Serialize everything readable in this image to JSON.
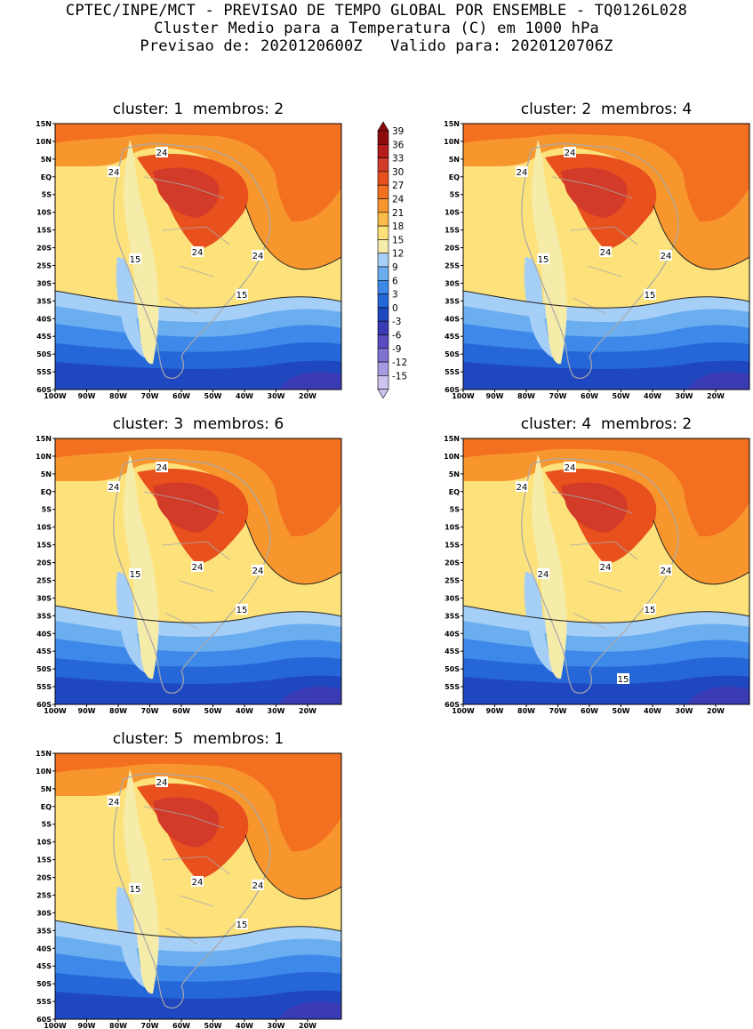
{
  "header": {
    "line1": "CPTEC/INPE/MCT - PREVISAO DE TEMPO GLOBAL POR ENSEMBLE - TQ0126L028",
    "line2": "Cluster Medio para a Temperatura (C) em 1000 hPa",
    "line3": "Previsao de: 2020120600Z   Valido para: 2020120706Z"
  },
  "colorbar": {
    "levels": [
      "39",
      "36",
      "33",
      "30",
      "27",
      "24",
      "21",
      "18",
      "15",
      "12",
      "9",
      "6",
      "3",
      "0",
      "-3",
      "-6",
      "-9",
      "-12",
      "-15"
    ],
    "colors": [
      "#8e0a0a",
      "#b51d1d",
      "#d23a2a",
      "#e8501e",
      "#f27020",
      "#f8962e",
      "#fbbb4a",
      "#fde27c",
      "#f5ecaa",
      "#a6cff7",
      "#6aaef0",
      "#3d88e8",
      "#2566d8",
      "#1f48c0",
      "#3b3ab5",
      "#5a4cc0",
      "#7e72d2",
      "#a89ae0",
      "#cfc4f0"
    ]
  },
  "axes": {
    "lat_labels": [
      "15N",
      "10N",
      "5N",
      "EQ",
      "5S",
      "10S",
      "15S",
      "20S",
      "25S",
      "30S",
      "35S",
      "40S",
      "45S",
      "50S",
      "55S",
      "60S"
    ],
    "lon_labels": [
      "100W",
      "90W",
      "80W",
      "70W",
      "60W",
      "50W",
      "40W",
      "30W",
      "20W"
    ]
  },
  "panels": [
    {
      "title": "cluster: 1  membros: 2",
      "contour_labels": [
        "24",
        "24",
        "24",
        "24",
        "15",
        "15"
      ]
    },
    {
      "title": "cluster: 2  membros: 4",
      "contour_labels": [
        "24",
        "24",
        "24",
        "24",
        "15",
        "15"
      ]
    },
    {
      "title": "cluster: 3  membros: 6",
      "contour_labels": [
        "24",
        "24",
        "24",
        "24",
        "15",
        "15"
      ]
    },
    {
      "title": "cluster: 4  membros: 2",
      "contour_labels": [
        "24",
        "24",
        "24",
        "24",
        "24",
        "15",
        "15"
      ]
    },
    {
      "title": "cluster: 5  membros: 1",
      "contour_labels": [
        "24",
        "24",
        "24",
        "24",
        "15",
        "15"
      ]
    }
  ]
}
